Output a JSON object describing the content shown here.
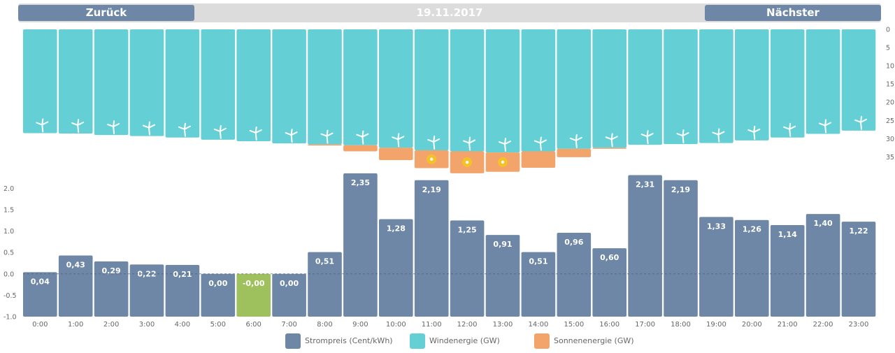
{
  "nav": {
    "back_label": "Zurück",
    "next_label": "Nächster",
    "date": "19.11.2017"
  },
  "colors": {
    "price": "#6e87a6",
    "price_negative": "#9fc15d",
    "wind": "#65cfd6",
    "solar": "#f2a46b",
    "sun_icon": "#f7c71c",
    "nav_bar": "#dcdcdc"
  },
  "legend": {
    "price_label": "Strompreis (Cent/kWh)",
    "wind_label": "Windenergie (GW)",
    "solar_label": "Sonnenenergie (GW)"
  },
  "chart_data": [
    {
      "type": "bar",
      "orientation": "hanging",
      "categories": [
        "0:00",
        "1:00",
        "2:00",
        "3:00",
        "4:00",
        "5:00",
        "6:00",
        "7:00",
        "8:00",
        "9:00",
        "10:00",
        "11:00",
        "12:00",
        "13:00",
        "14:00",
        "15:00",
        "16:00",
        "17:00",
        "18:00",
        "19:00",
        "20:00",
        "21:00",
        "22:00",
        "23:00"
      ],
      "series": [
        {
          "name": "Windenergie (GW)",
          "values": [
            28.5,
            28.6,
            29.0,
            29.3,
            29.7,
            30.3,
            30.7,
            31.3,
            31.6,
            31.8,
            32.5,
            33.2,
            33.5,
            33.8,
            33.5,
            32.8,
            32.5,
            31.7,
            31.5,
            31.2,
            30.5,
            29.7,
            28.7,
            27.8
          ]
        },
        {
          "name": "Sonnenenergie (GW)",
          "values": [
            0,
            0,
            0,
            0,
            0,
            0,
            0,
            0,
            0.3,
            1.7,
            3.4,
            4.9,
            6.0,
            5.3,
            4.5,
            2.3,
            0.3,
            0,
            0,
            0,
            0,
            0,
            0,
            0
          ]
        }
      ],
      "wind_icon": "wind-turbine-icon",
      "sun_icon": "sun-icon",
      "sun_icon_hours": [
        "11:00",
        "12:00",
        "13:00"
      ],
      "yticks": [
        0,
        5,
        10,
        15,
        20,
        25,
        30,
        35
      ],
      "ylim": [
        0,
        38
      ],
      "stacked": true
    },
    {
      "type": "bar",
      "categories": [
        "0:00",
        "1:00",
        "2:00",
        "3:00",
        "4:00",
        "5:00",
        "6:00",
        "7:00",
        "8:00",
        "9:00",
        "10:00",
        "11:00",
        "12:00",
        "13:00",
        "14:00",
        "15:00",
        "16:00",
        "17:00",
        "18:00",
        "19:00",
        "20:00",
        "21:00",
        "22:00",
        "23:00"
      ],
      "series": [
        {
          "name": "Strompreis (Cent/kWh)",
          "values": [
            0.04,
            0.43,
            0.29,
            0.22,
            0.21,
            0.0,
            -0.0,
            0.0,
            0.51,
            2.35,
            1.28,
            2.19,
            1.25,
            0.91,
            0.51,
            0.96,
            0.6,
            2.31,
            2.19,
            1.33,
            1.26,
            1.14,
            1.4,
            1.22
          ]
        }
      ],
      "data_labels": [
        "0,04",
        "0,43",
        "0,29",
        "0,22",
        "0,21",
        "0,00",
        "-0,00",
        "0,00",
        "0,51",
        "2,35",
        "1,28",
        "2,19",
        "1,25",
        "0,91",
        "0,51",
        "0,96",
        "0,60",
        "2,31",
        "2,19",
        "1,33",
        "1,26",
        "1,14",
        "1,40",
        "1,22"
      ],
      "negative_index": 6,
      "yticks": [
        -1.0,
        -0.5,
        0.0,
        0.5,
        1.0,
        1.5,
        2.0
      ],
      "ytick_labels": [
        "-1.0",
        "-0.5",
        "0.0",
        "0.5",
        "1.0",
        "1.5",
        "2.0"
      ],
      "ylim": [
        -1.0,
        2.35
      ],
      "grid": false,
      "zero_line": "dashed",
      "legend_position": "bottom-center"
    }
  ]
}
